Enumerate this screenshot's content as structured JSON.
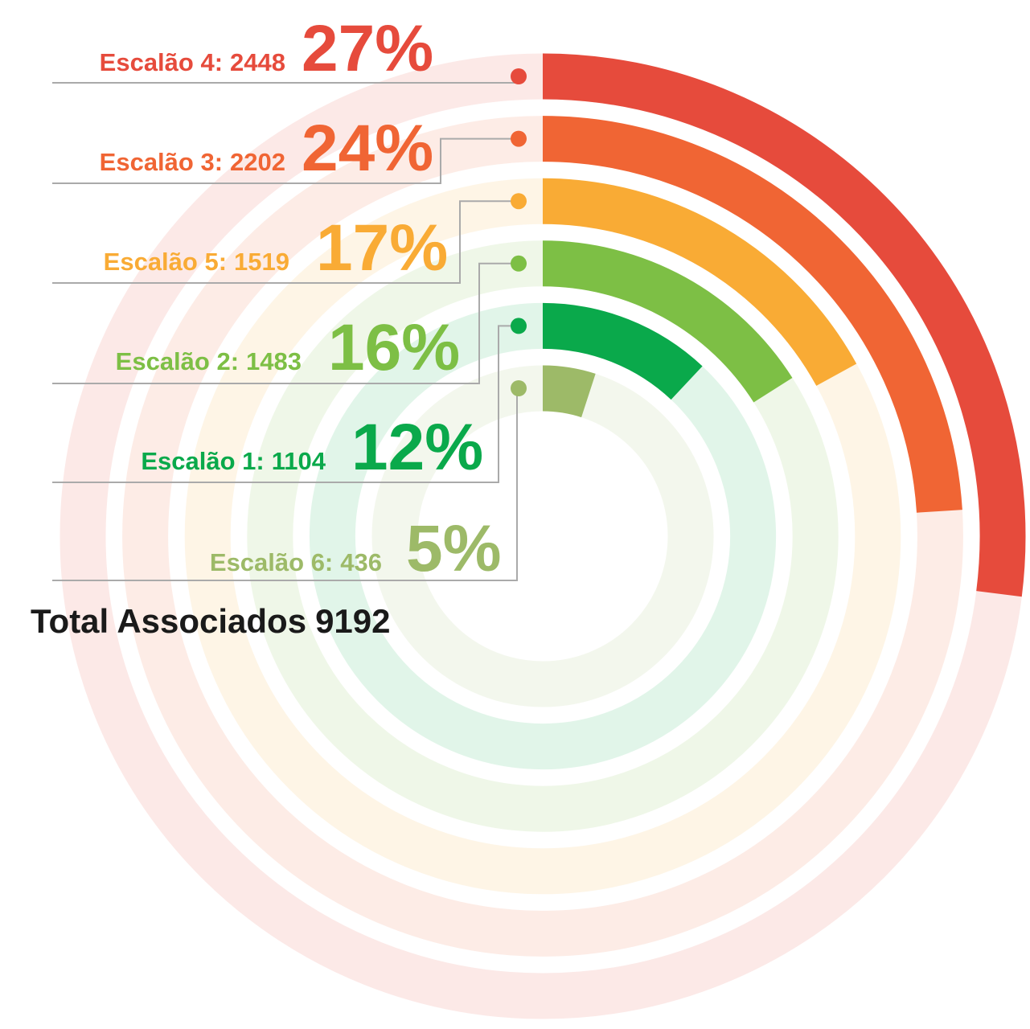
{
  "chart_data": {
    "type": "radial_bar",
    "series": [
      {
        "name": "Escalão 4:",
        "count": 2448,
        "value": 27,
        "value_label": "27%",
        "color": "#e64b3c"
      },
      {
        "name": "Escalão 3:",
        "count": 2202,
        "value": 24,
        "value_label": "24%",
        "color": "#f06534"
      },
      {
        "name": "Escalão 5:",
        "count": 1519,
        "value": 17,
        "value_label": "17%",
        "color": "#f9ab35"
      },
      {
        "name": "Escalão 2:",
        "count": 1483,
        "value": 16,
        "value_label": "16%",
        "color": "#7dbf45"
      },
      {
        "name": "Escalão 1:",
        "count": 1104,
        "value": 12,
        "value_label": "12%",
        "color": "#0aa94b"
      },
      {
        "name": "Escalão 6:",
        "count": 436,
        "value": 5,
        "value_label": "5%",
        "color": "#9dba68"
      }
    ],
    "total_label": "Total Associados",
    "total": 9192
  }
}
